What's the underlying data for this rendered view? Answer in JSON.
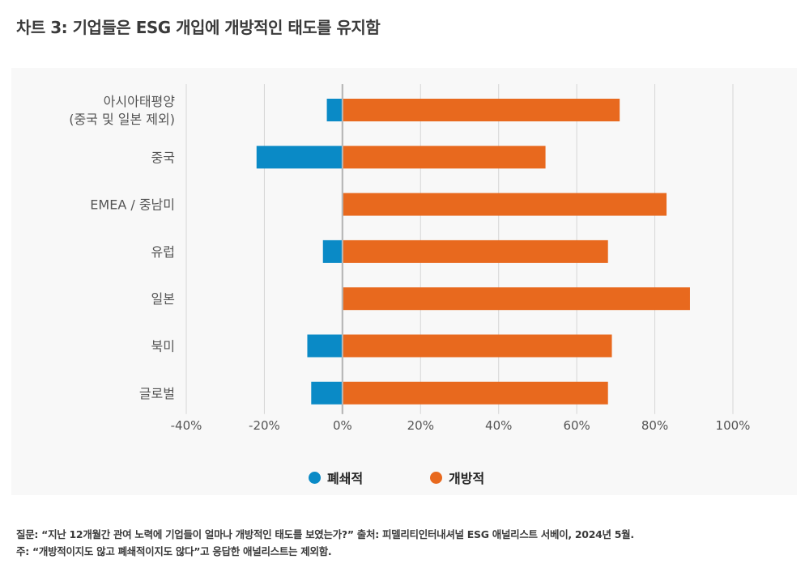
{
  "title": "차트 3: 기업들은 ESG 개입에 개방적인 태도를 유지함",
  "colors": {
    "closed": "#0a8ac6",
    "open": "#e8691e",
    "grid": "#d6d6d6",
    "zero_axis": "#b8b8b8",
    "panel_bg": "#f8f8f8"
  },
  "legend": [
    {
      "label": "폐쇄적",
      "color": "#0a8ac6"
    },
    {
      "label": "개방적",
      "color": "#e8691e"
    }
  ],
  "chart_data": {
    "type": "bar",
    "orientation": "horizontal",
    "categories": [
      [
        "아시아태평양",
        "(중국 및 일본 제외)"
      ],
      [
        "중국"
      ],
      [
        "EMEA / 중남미"
      ],
      [
        "유럽"
      ],
      [
        "일본"
      ],
      [
        "북미"
      ],
      [
        "글로벌"
      ]
    ],
    "series": [
      {
        "name": "폐쇄적",
        "values": [
          -4,
          -22,
          0,
          -5,
          0,
          -9,
          -8
        ]
      },
      {
        "name": "개방적",
        "values": [
          71,
          52,
          83,
          68,
          89,
          69,
          68
        ]
      }
    ],
    "xlim": [
      -40,
      100
    ],
    "xticks": [
      -40,
      -20,
      0,
      20,
      40,
      60,
      80,
      100
    ],
    "xtick_labels": [
      "-40%",
      "-20%",
      "0%",
      "20%",
      "40%",
      "60%",
      "80%",
      "100%"
    ],
    "grid": true,
    "legend_position": "bottom-center"
  },
  "footnote": {
    "line1": "질문: “지난 12개월간 관여 노력에 기업들이 얼마나 개방적인 태도를 보였는가?” 출처: 피델리티인터내셔널 ESG 애널리스트 서베이, 2024년 5월.",
    "line2": "주: “개방적이지도 않고 폐쇄적이지도 않다”고 응답한 애널리스트는 제외함."
  }
}
